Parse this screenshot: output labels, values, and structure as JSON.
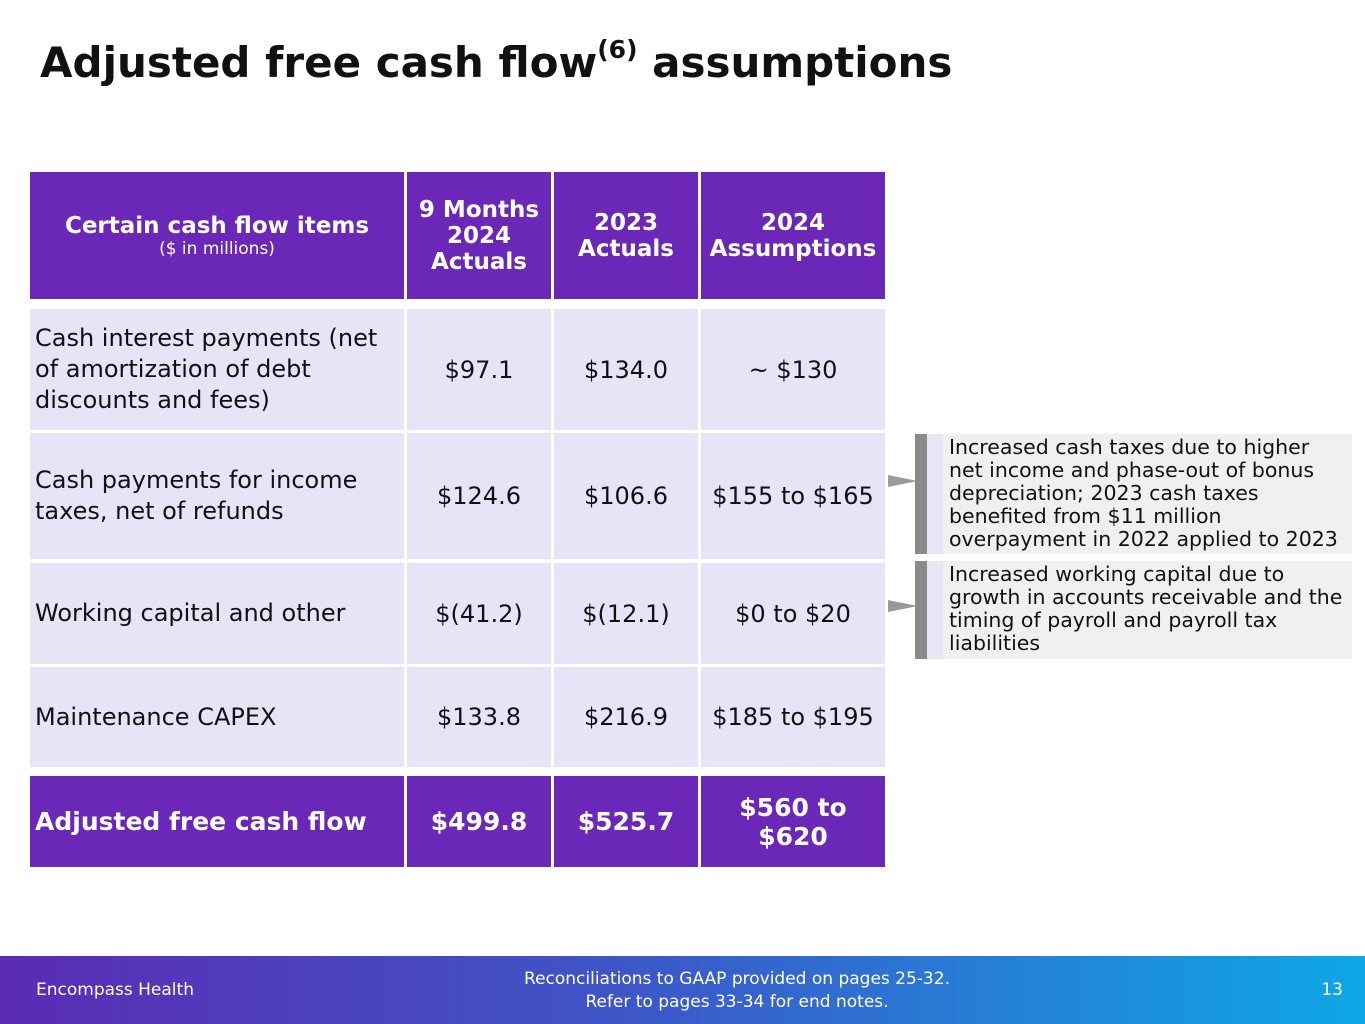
{
  "page": {
    "title_main": "Adjusted free cash flow",
    "title_sup": "(6)",
    "title_rest": " assumptions"
  },
  "table": {
    "header": {
      "label": "Certain cash flow items",
      "sublabel": "($ in millions)",
      "col1": "9 Months 2024 Actuals",
      "col2": "2023 Actuals",
      "col3": "2024 Assumptions"
    },
    "rows": [
      {
        "label": "Cash interest payments (net of amortization of debt discounts and fees)",
        "c1": "$97.1",
        "c2": "$134.0",
        "c3": "~ $130"
      },
      {
        "label": "Cash payments for income taxes, net of refunds",
        "c1": "$124.6",
        "c2": "$106.6",
        "c3": "$155 to $165"
      },
      {
        "label": "Working capital and other",
        "c1": "$(41.2)",
        "c2": "$(12.1)",
        "c3": "$0 to $20"
      },
      {
        "label": "Maintenance CAPEX",
        "c1": "$133.8",
        "c2": "$216.9",
        "c3": "$185 to $195"
      }
    ],
    "total": {
      "label": "Adjusted free cash flow",
      "c1": "$499.8",
      "c2": "$525.7",
      "c3": "$560 to $620"
    }
  },
  "notes": [
    "Increased cash taxes due to higher net income and phase-out of bonus depreciation; 2023 cash taxes benefited from $11 million overpayment in 2022 applied to 2023",
    "Increased working capital due to growth in accounts receivable and the timing of payroll and payroll tax liabilities"
  ],
  "footer": {
    "brand": "Encompass Health",
    "line1": "Reconciliations to GAAP provided on pages 25-32.",
    "line2": "Refer to pages 33-34 for end notes.",
    "page_number": "13"
  },
  "colors": {
    "header": "#6a27b8",
    "row": "#e5e5f7",
    "note_bg": "#f0f0f0"
  }
}
